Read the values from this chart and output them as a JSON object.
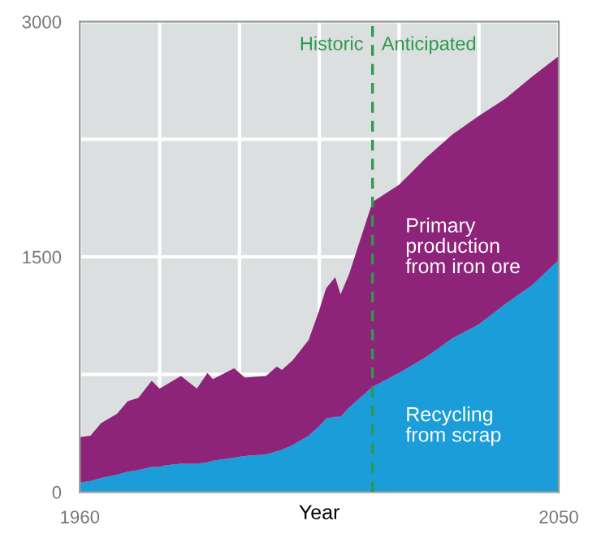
{
  "chart_data": {
    "type": "area",
    "stacked": true,
    "xlabel": "Year",
    "x": [
      1960,
      1962,
      1964,
      1967,
      1969,
      1971,
      1973.5,
      1975,
      1976,
      1979,
      1982,
      1984,
      1985,
      1989,
      1991,
      1995,
      1997,
      1998,
      2000,
      2003,
      2005,
      2006.3,
      2008,
      2009,
      2010.6,
      2015,
      2020,
      2025,
      2030,
      2035,
      2040,
      2045,
      2050
    ],
    "series": [
      {
        "name": "Recycling\nfrom scrap",
        "color": "#1a9dd9",
        "values": [
          60,
          70,
          90,
          110,
          130,
          140,
          160,
          160,
          170,
          180,
          180,
          190,
          200,
          220,
          230,
          240,
          260,
          270,
          300,
          360,
          420,
          470,
          480,
          480,
          540,
          670,
          760,
          860,
          980,
          1070,
          1200,
          1320,
          1480
        ]
      },
      {
        "name": "Primary\nproduction\nfrom iron ore",
        "color": "#8e247a",
        "values": [
          290,
          290,
          350,
          390,
          450,
          460,
          550,
          500,
          510,
          560,
          480,
          570,
          520,
          570,
          500,
          500,
          540,
          510,
          540,
          610,
          740,
          830,
          890,
          780,
          850,
          1180,
          1200,
          1270,
          1300,
          1330,
          1310,
          1330,
          1300
        ]
      }
    ],
    "xlim": [
      1960,
      2050
    ],
    "ylim": [
      0,
      3000
    ],
    "xticks": [
      1960,
      {
        "value": 1975,
        "label": null
      },
      {
        "value": 1990,
        "label": null
      },
      {
        "value": 2005,
        "label": null
      },
      {
        "value": 2020,
        "label": null
      },
      {
        "value": 2035,
        "label": null
      },
      2050
    ],
    "yticks": [
      0,
      {
        "value": 750,
        "label": null
      },
      1500,
      {
        "value": 2250,
        "label": null
      },
      3000
    ],
    "grid": true,
    "legend": false,
    "ref_lines": [
      {
        "axis": "x",
        "value": 2015,
        "color": "#2e9a4a",
        "line_style": "dashed"
      }
    ],
    "annotations": [
      {
        "text": "Historic",
        "x": 2015,
        "y": 2850
      },
      {
        "text": "Anticipated",
        "x": 2015,
        "y": 2850
      }
    ]
  }
}
